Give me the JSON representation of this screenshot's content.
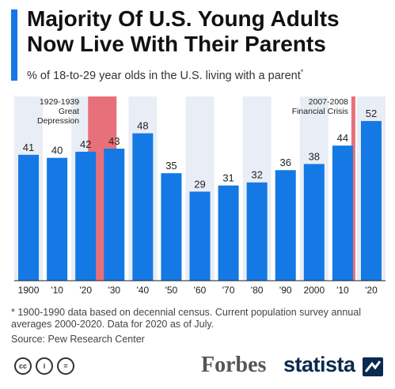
{
  "title_line1": "Majority Of U.S. Young Adults",
  "title_line2": "Now Live With Their Parents",
  "subtitle": "% of 18-to-29 year olds in the U.S. living with a parent",
  "subtitle_mark": "*",
  "chart_data": {
    "type": "bar",
    "categories": [
      "1900",
      "'10",
      "'20",
      "'30",
      "'40",
      "'50",
      "'60",
      "'70",
      "'80",
      "'90",
      "2000",
      "'10",
      "'20"
    ],
    "values": [
      41,
      40,
      42,
      43,
      48,
      35,
      29,
      31,
      32,
      36,
      38,
      44,
      52
    ],
    "ylim": [
      0,
      60
    ],
    "bar_color": "#1479e4",
    "highlight_color": "#e8707a",
    "band_color": "#e9eef6",
    "annotations": [
      {
        "label_lines": [
          "1929-1939",
          "Great",
          "Depression"
        ],
        "period": "'20-'30"
      },
      {
        "label_lines": [
          "2007-2008",
          "Financial Crisis"
        ],
        "period": "2000-'10"
      }
    ]
  },
  "footnote": "* 1900-1990 data based on decennial census. Current population survey annual averages 2000-2020. Data for 2020 as of July.",
  "source": "Source: Pew Research Center",
  "footer": {
    "icon_cc": "cc",
    "icon_by": "i",
    "icon_nd": "=",
    "brand_forbes": "Forbes",
    "brand_statista": "statista"
  }
}
